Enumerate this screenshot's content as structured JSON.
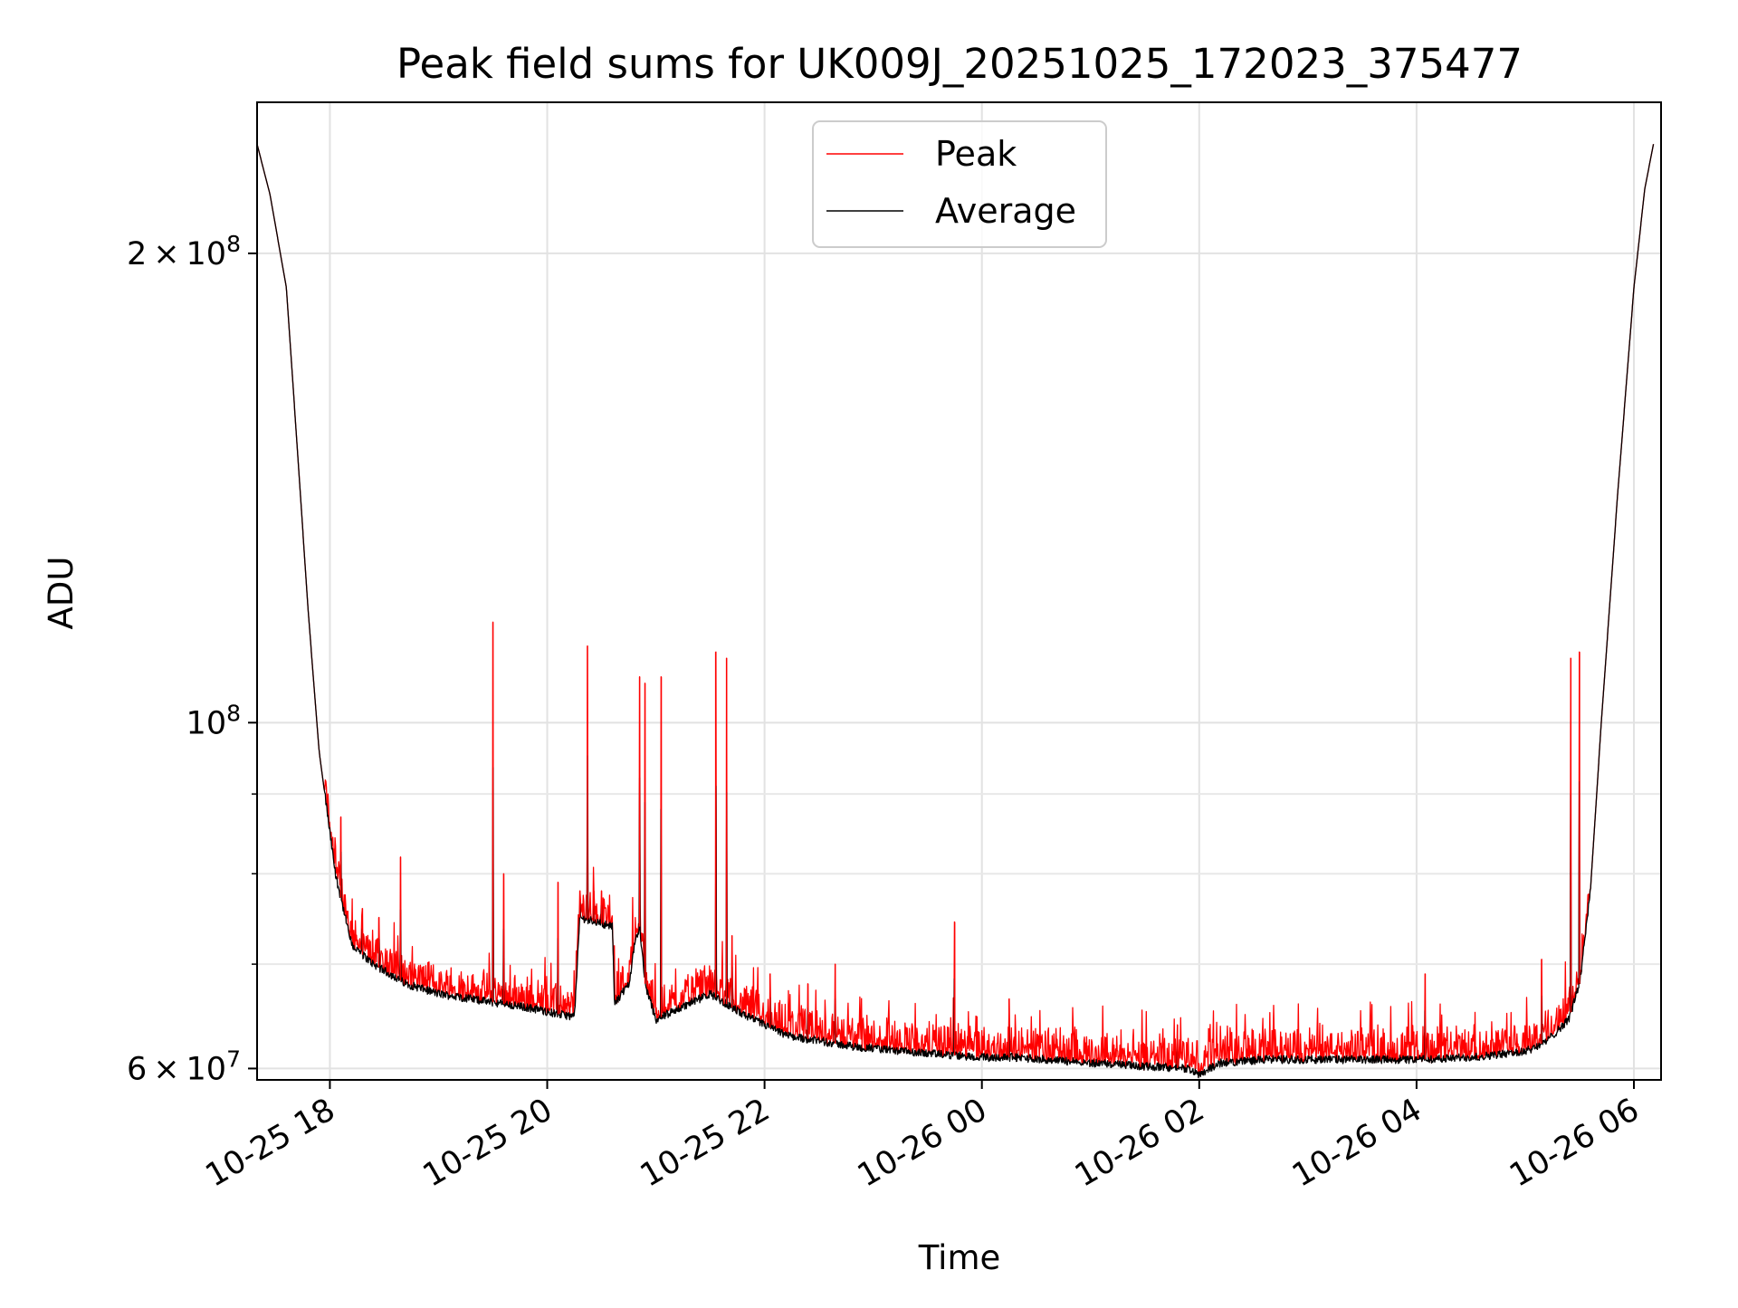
{
  "chart_data": {
    "type": "line",
    "title": "Peak field sums for UK009J_20251025_172023_375477",
    "xlabel": "Time",
    "ylabel": "ADU",
    "yscale": "log",
    "ylim": [
      59000000,
      250000000
    ],
    "xlim": [
      "2025-10-25 17:20",
      "2025-10-26 06:15"
    ],
    "grid": true,
    "legend": {
      "placement": "upper center",
      "entries": [
        "Peak",
        "Average"
      ]
    },
    "x_ticks": [
      "10-25 18",
      "10-25 20",
      "10-25 22",
      "10-26 00",
      "10-26 02",
      "10-26 04",
      "10-26 06"
    ],
    "x_tick_hours": [
      18,
      20,
      22,
      24,
      26,
      28,
      30
    ],
    "y_ticks": [
      {
        "value": 200000000,
        "mantissa": "2",
        "exp": "8"
      },
      {
        "value": 100000000,
        "mantissa": "",
        "exp": "8"
      },
      {
        "value": 60000000,
        "mantissa": "6",
        "exp": "7"
      }
    ],
    "y_minor_ticks": [
      70000000,
      80000000,
      90000000
    ],
    "series": [
      {
        "name": "Average",
        "color": "#000000",
        "x_hours": [
          17.33,
          17.45,
          17.6,
          17.7,
          17.8,
          17.9,
          18.05,
          18.2,
          18.4,
          18.7,
          19.0,
          19.3,
          19.6,
          19.9,
          20.1,
          20.25,
          20.3,
          20.6,
          20.62,
          20.75,
          20.78,
          20.8,
          20.85,
          20.9,
          21.0,
          21.3,
          21.5,
          21.8,
          22.0,
          22.2,
          22.5,
          22.8,
          23.0,
          23.3,
          23.7,
          24.0,
          24.3,
          24.6,
          25.0,
          25.5,
          25.9,
          26.0,
          26.2,
          26.6,
          27.0,
          27.5,
          28.0,
          28.5,
          29.0,
          29.2,
          29.4,
          29.5,
          29.6,
          29.7,
          29.85,
          30.0,
          30.1,
          30.18
        ],
        "values": [
          235000000,
          218000000,
          190000000,
          150000000,
          118000000,
          96000000,
          80000000,
          72000000,
          70000000,
          68000000,
          67000000,
          66500000,
          66000000,
          65500000,
          65000000,
          64800000,
          75000000,
          74000000,
          66000000,
          68000000,
          70000000,
          72000000,
          74000000,
          68000000,
          64500000,
          66000000,
          67000000,
          65000000,
          64000000,
          63000000,
          62500000,
          62000000,
          61800000,
          61500000,
          61200000,
          61000000,
          61000000,
          60800000,
          60500000,
          60200000,
          60000000,
          59500000,
          60500000,
          60800000,
          60800000,
          60800000,
          60800000,
          61000000,
          61500000,
          62500000,
          64500000,
          68000000,
          78000000,
          100000000,
          140000000,
          190000000,
          220000000,
          235000000
        ]
      },
      {
        "name": "Peak",
        "color": "#ff0000",
        "spikes": [
          {
            "x_hours": 18.1,
            "value": 87000000
          },
          {
            "x_hours": 18.3,
            "value": 76000000
          },
          {
            "x_hours": 18.45,
            "value": 75000000
          },
          {
            "x_hours": 18.65,
            "value": 82000000
          },
          {
            "x_hours": 19.5,
            "value": 116000000
          },
          {
            "x_hours": 19.6,
            "value": 80000000
          },
          {
            "x_hours": 20.1,
            "value": 79000000
          },
          {
            "x_hours": 20.3,
            "value": 78000000
          },
          {
            "x_hours": 20.37,
            "value": 112000000
          },
          {
            "x_hours": 20.43,
            "value": 78000000
          },
          {
            "x_hours": 20.5,
            "value": 78000000
          },
          {
            "x_hours": 20.85,
            "value": 107000000
          },
          {
            "x_hours": 20.9,
            "value": 106000000
          },
          {
            "x_hours": 21.05,
            "value": 107000000
          },
          {
            "x_hours": 21.55,
            "value": 111000000
          },
          {
            "x_hours": 21.65,
            "value": 110000000
          },
          {
            "x_hours": 21.7,
            "value": 73000000
          },
          {
            "x_hours": 22.05,
            "value": 69000000
          },
          {
            "x_hours": 22.4,
            "value": 68000000
          },
          {
            "x_hours": 22.65,
            "value": 70000000
          },
          {
            "x_hours": 23.75,
            "value": 74500000
          },
          {
            "x_hours": 24.25,
            "value": 66500000
          },
          {
            "x_hours": 25.8,
            "value": 64000000
          },
          {
            "x_hours": 28.08,
            "value": 69000000
          },
          {
            "x_hours": 29.15,
            "value": 70500000
          },
          {
            "x_hours": 29.42,
            "value": 110000000
          },
          {
            "x_hours": 29.5,
            "value": 111000000
          }
        ]
      }
    ]
  }
}
